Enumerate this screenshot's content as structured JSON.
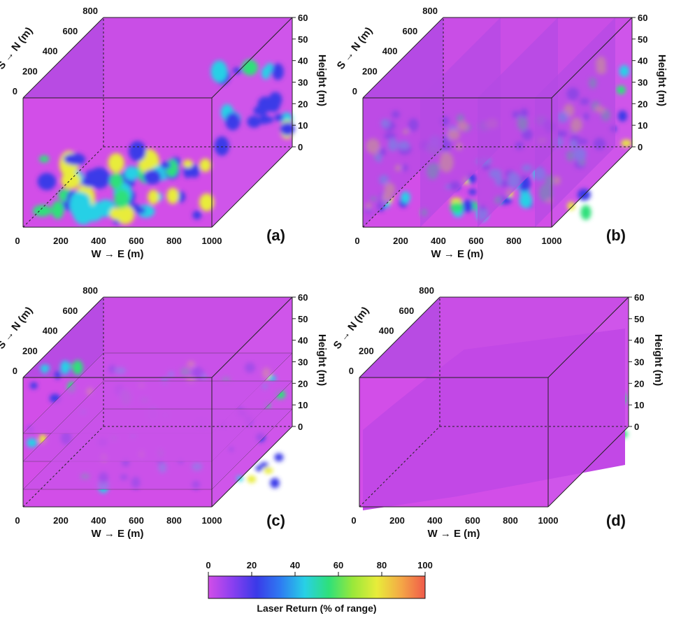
{
  "chart_data": [
    {
      "type": "heatmap",
      "panel_label": "(a)",
      "xlabel": "W → E (m)",
      "ylabel": "S → N (m)",
      "zlabel": "Height (m)",
      "x_ticks": [
        "0",
        "200",
        "400",
        "600",
        "800",
        "1000"
      ],
      "y_ticks": [
        "0",
        "200",
        "400",
        "600",
        "800"
      ],
      "z_ticks": [
        "0",
        "10",
        "20",
        "30",
        "40",
        "50",
        "60"
      ],
      "xlim": [
        0,
        1000
      ],
      "ylim": [
        0,
        800
      ],
      "zlim": [
        0,
        60
      ],
      "view": "vertical slice along W-E at south face"
    },
    {
      "type": "heatmap",
      "panel_label": "(b)",
      "xlabel": "W → E (m)",
      "ylabel": "S → N (m)",
      "zlabel": "Height (m)",
      "x_ticks": [
        "0",
        "200",
        "400",
        "600",
        "800",
        "1000"
      ],
      "y_ticks": [
        "0",
        "200",
        "400",
        "600",
        "800"
      ],
      "z_ticks": [
        "0",
        "10",
        "20",
        "30",
        "40",
        "50",
        "60"
      ],
      "xlim": [
        0,
        1000
      ],
      "ylim": [
        0,
        800
      ],
      "zlim": [
        0,
        60
      ],
      "view": "vertical slices along S-N"
    },
    {
      "type": "heatmap",
      "panel_label": "(c)",
      "xlabel": "W → E (m)",
      "ylabel": "S → N (m)",
      "zlabel": "Height (m)",
      "x_ticks": [
        "0",
        "200",
        "400",
        "600",
        "800",
        "1000"
      ],
      "y_ticks": [
        "0",
        "200",
        "400",
        "600",
        "800"
      ],
      "z_ticks": [
        "0",
        "10",
        "20",
        "30",
        "40",
        "50",
        "60"
      ],
      "xlim": [
        0,
        1000
      ],
      "ylim": [
        0,
        800
      ],
      "zlim": [
        0,
        60
      ],
      "view": "horizontal slices at several heights"
    },
    {
      "type": "heatmap",
      "panel_label": "(d)",
      "xlabel": "W → E (m)",
      "ylabel": "S → N (m)",
      "zlabel": "Height (m)",
      "x_ticks": [
        "0",
        "200",
        "400",
        "600",
        "800",
        "1000"
      ],
      "y_ticks": [
        "0",
        "200",
        "400",
        "600",
        "800"
      ],
      "z_ticks": [
        "0",
        "10",
        "20",
        "30",
        "40",
        "50",
        "60"
      ],
      "xlim": [
        0,
        1000
      ],
      "ylim": [
        0,
        800
      ],
      "zlim": [
        0,
        60
      ],
      "view": "isosurface with cut-away"
    }
  ],
  "colorbar": {
    "label": "Laser Return (% of range)",
    "ticks": [
      "0",
      "20",
      "40",
      "60",
      "80",
      "100"
    ],
    "range": [
      0,
      100
    ],
    "colors": [
      "#d24ee8",
      "#8a3ff0",
      "#3a3ae8",
      "#2e7cf2",
      "#28d0e6",
      "#2ee07a",
      "#9ae83a",
      "#e8ec3a",
      "#f4a846",
      "#f05a4a"
    ]
  },
  "colors": {
    "background": "#d24ee8",
    "low": "#3a3ae8",
    "mid": "#28d0e6",
    "high": "#2ee07a",
    "peak": "#e8ec3a"
  }
}
